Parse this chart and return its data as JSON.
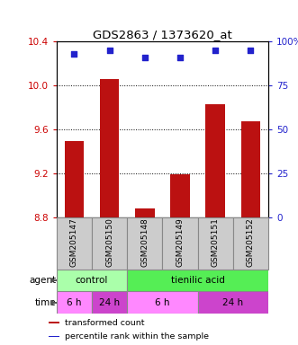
{
  "title": "GDS2863 / 1373620_at",
  "samples": [
    "GSM205147",
    "GSM205150",
    "GSM205148",
    "GSM205149",
    "GSM205151",
    "GSM205152"
  ],
  "bar_values": [
    9.49,
    10.06,
    8.88,
    9.19,
    9.83,
    9.67
  ],
  "scatter_values": [
    93,
    95,
    91,
    91,
    95,
    95
  ],
  "bar_color": "#bb1111",
  "scatter_color": "#2222cc",
  "ylim_left": [
    8.8,
    10.4
  ],
  "ylim_right": [
    0,
    100
  ],
  "yticks_left": [
    8.8,
    9.2,
    9.6,
    10.0,
    10.4
  ],
  "yticks_right": [
    0,
    25,
    50,
    75,
    100
  ],
  "ytick_right_labels": [
    "0",
    "25",
    "50",
    "75",
    "100%"
  ],
  "agent_groups": [
    {
      "label": "control",
      "start": 0,
      "end": 2,
      "color": "#aaffaa"
    },
    {
      "label": "tienilic acid",
      "start": 2,
      "end": 6,
      "color": "#55ee55"
    }
  ],
  "time_groups": [
    {
      "label": "6 h",
      "start": 0,
      "end": 1,
      "color": "#ff88ff"
    },
    {
      "label": "24 h",
      "start": 1,
      "end": 2,
      "color": "#cc44cc"
    },
    {
      "label": "6 h",
      "start": 2,
      "end": 4,
      "color": "#ff88ff"
    },
    {
      "label": "24 h",
      "start": 4,
      "end": 6,
      "color": "#cc44cc"
    }
  ],
  "legend_items": [
    {
      "label": "transformed count",
      "color": "#bb1111"
    },
    {
      "label": "percentile rank within the sample",
      "color": "#2222cc"
    }
  ],
  "sample_bg": "#cccccc",
  "sample_edge": "#888888",
  "label_color_left": "#cc0000",
  "label_color_right": "#2222cc",
  "background_color": "#ffffff",
  "bar_bottom": 8.8,
  "n": 6
}
